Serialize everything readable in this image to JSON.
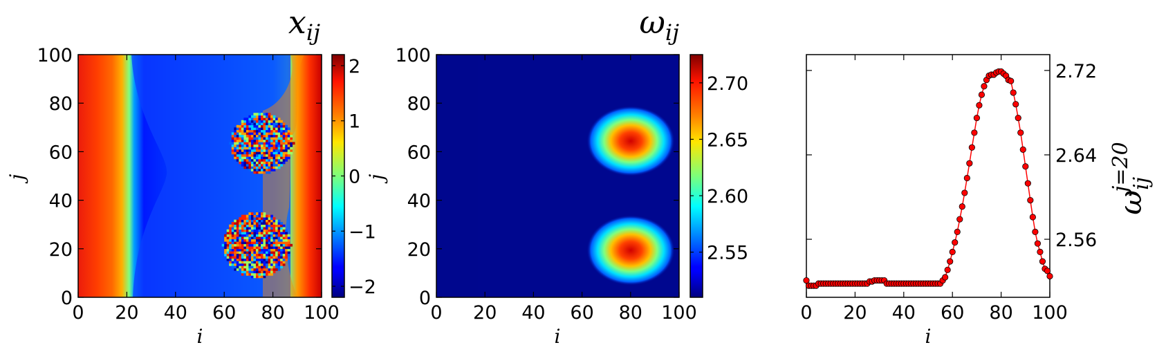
{
  "chart_data": [
    {
      "type": "heatmap",
      "title": "x_ij",
      "xlabel": "i",
      "ylabel": "j",
      "xlim": [
        0,
        100
      ],
      "ylim": [
        0,
        100
      ],
      "xticks": [
        "0",
        "20",
        "40",
        "60",
        "80",
        "100"
      ],
      "yticks": [
        "0",
        "20",
        "40",
        "60",
        "80",
        "100"
      ],
      "colormap": "jet",
      "colorbar": {
        "range": [
          -2.2,
          2.2
        ],
        "ticks": [
          -2,
          -1,
          0,
          1,
          2
        ],
        "tick_labels": [
          "−2",
          "−1",
          "0",
          "1",
          "2"
        ]
      },
      "regions": [
        {
          "description": "left band high value",
          "value": 1.9
        },
        {
          "description": "central plateau",
          "value": -1.6
        },
        {
          "description": "disordered spot",
          "center": [
            75,
            63
          ],
          "radius": 13
        },
        {
          "description": "disordered spot",
          "center": [
            73,
            21
          ],
          "radius": 14
        }
      ]
    },
    {
      "type": "heatmap",
      "title": "ω_ij",
      "xlabel": "i",
      "ylabel": "j",
      "xlim": [
        0,
        100
      ],
      "ylim": [
        0,
        100
      ],
      "xticks": [
        "0",
        "20",
        "40",
        "60",
        "80",
        "100"
      ],
      "yticks": [
        "0",
        "20",
        "40",
        "60",
        "80",
        "100"
      ],
      "colormap": "jet",
      "colorbar": {
        "range": [
          2.51,
          2.725
        ],
        "ticks": [
          2.55,
          2.6,
          2.65,
          2.7
        ],
        "tick_labels": [
          "2.55",
          "2.60",
          "2.65",
          "2.70"
        ]
      },
      "background_value": 2.515,
      "peaks": [
        {
          "center": [
            80,
            64
          ],
          "peak_value": 2.72
        },
        {
          "center": [
            80,
            19
          ],
          "peak_value": 2.72
        }
      ]
    },
    {
      "type": "line",
      "xlabel": "i",
      "ylabel": "ω_ij^{j=20}",
      "xlim": [
        0,
        100
      ],
      "ylim": [
        2.505,
        2.735
      ],
      "xticks": [
        "0",
        "20",
        "40",
        "60",
        "80",
        "100"
      ],
      "yticks": [
        "2.56",
        "2.64",
        "2.72"
      ],
      "ytick_values": [
        2.56,
        2.64,
        2.72
      ],
      "series": [
        {
          "color": "#ff0000",
          "marker": "circle",
          "x": [
            0,
            1,
            2,
            3,
            4,
            5,
            6,
            7,
            8,
            9,
            10,
            11,
            12,
            13,
            14,
            15,
            16,
            17,
            18,
            19,
            20,
            21,
            22,
            23,
            24,
            25,
            26,
            27,
            28,
            29,
            30,
            31,
            32,
            33,
            34,
            35,
            36,
            37,
            38,
            39,
            40,
            41,
            42,
            43,
            44,
            45,
            46,
            47,
            48,
            49,
            50,
            51,
            52,
            53,
            54,
            55,
            56,
            57,
            58,
            59,
            60,
            61,
            62,
            63,
            64,
            65,
            66,
            67,
            68,
            69,
            70,
            71,
            72,
            73,
            74,
            75,
            76,
            77,
            78,
            79,
            80,
            81,
            82,
            83,
            84,
            85,
            86,
            87,
            88,
            89,
            90,
            91,
            92,
            93,
            94,
            95,
            96,
            97,
            98,
            99,
            100
          ],
          "y": [
            2.521,
            2.516,
            2.516,
            2.516,
            2.516,
            2.518,
            2.518,
            2.518,
            2.518,
            2.518,
            2.518,
            2.518,
            2.518,
            2.518,
            2.518,
            2.518,
            2.518,
            2.518,
            2.518,
            2.518,
            2.518,
            2.518,
            2.518,
            2.518,
            2.518,
            2.518,
            2.52,
            2.52,
            2.521,
            2.521,
            2.521,
            2.521,
            2.521,
            2.518,
            2.518,
            2.518,
            2.518,
            2.518,
            2.518,
            2.518,
            2.518,
            2.518,
            2.518,
            2.518,
            2.518,
            2.518,
            2.518,
            2.518,
            2.518,
            2.518,
            2.518,
            2.518,
            2.518,
            2.518,
            2.518,
            2.518,
            2.521,
            2.524,
            2.531,
            2.539,
            2.548,
            2.557,
            2.567,
            2.579,
            2.591,
            2.604,
            2.618,
            2.632,
            2.647,
            2.661,
            2.675,
            2.687,
            2.697,
            2.705,
            2.711,
            2.715,
            2.716,
            2.716,
            2.718,
            2.719,
            2.719,
            2.717,
            2.715,
            2.711,
            2.71,
            2.699,
            2.688,
            2.675,
            2.661,
            2.645,
            2.629,
            2.613,
            2.597,
            2.581,
            2.567,
            2.556,
            2.548,
            2.539,
            2.532,
            2.53,
            2.525
          ]
        }
      ]
    }
  ]
}
